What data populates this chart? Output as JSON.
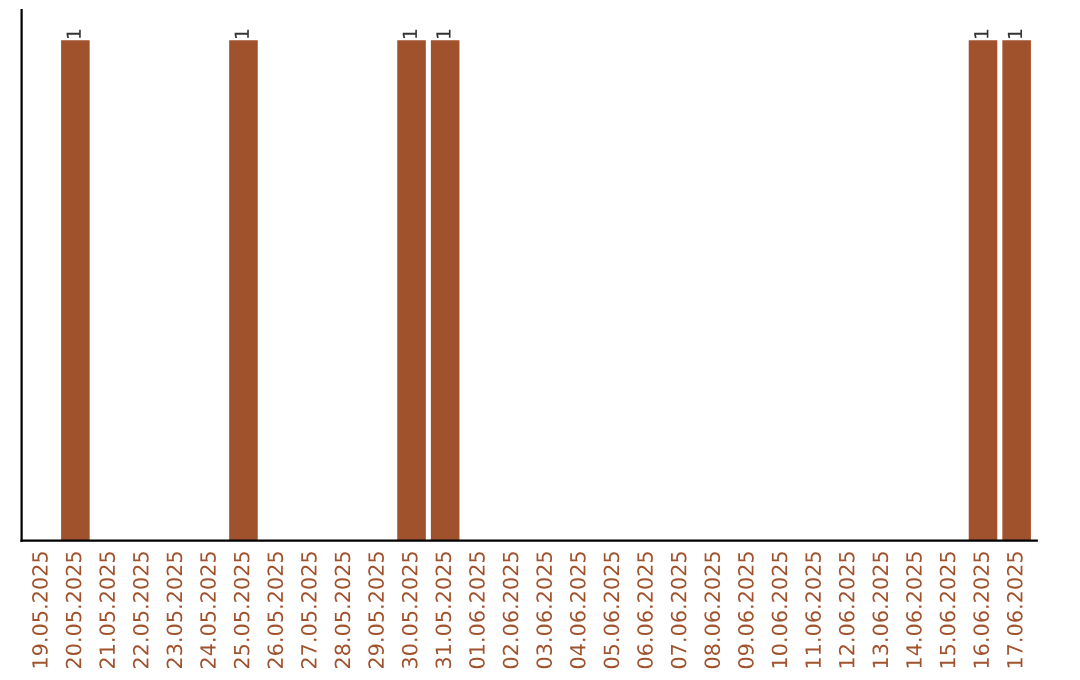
{
  "chart_data": {
    "type": "bar",
    "categories": [
      "19.05.2025",
      "20.05.2025",
      "21.05.2025",
      "22.05.2025",
      "23.05.2025",
      "24.05.2025",
      "25.05.2025",
      "26.05.2025",
      "27.05.2025",
      "28.05.2025",
      "29.05.2025",
      "30.05.2025",
      "31.05.2025",
      "01.06.2025",
      "02.06.2025",
      "03.06.2025",
      "04.06.2025",
      "05.06.2025",
      "06.06.2025",
      "07.06.2025",
      "08.06.2025",
      "09.06.2025",
      "10.06.2025",
      "11.06.2025",
      "12.06.2025",
      "13.06.2025",
      "14.06.2025",
      "15.06.2025",
      "16.06.2025",
      "17.06.2025"
    ],
    "values": [
      0,
      1,
      0,
      0,
      0,
      0,
      1,
      0,
      0,
      0,
      0,
      1,
      1,
      0,
      0,
      0,
      0,
      0,
      0,
      0,
      0,
      0,
      0,
      0,
      0,
      0,
      0,
      0,
      1,
      1
    ],
    "value_labels": [
      null,
      "1",
      null,
      null,
      null,
      null,
      "1",
      null,
      null,
      null,
      null,
      "1",
      "1",
      null,
      null,
      null,
      null,
      null,
      null,
      null,
      null,
      null,
      null,
      null,
      null,
      null,
      null,
      null,
      "1",
      "1"
    ],
    "color": "#a0522d",
    "grid": false,
    "legend": false
  }
}
